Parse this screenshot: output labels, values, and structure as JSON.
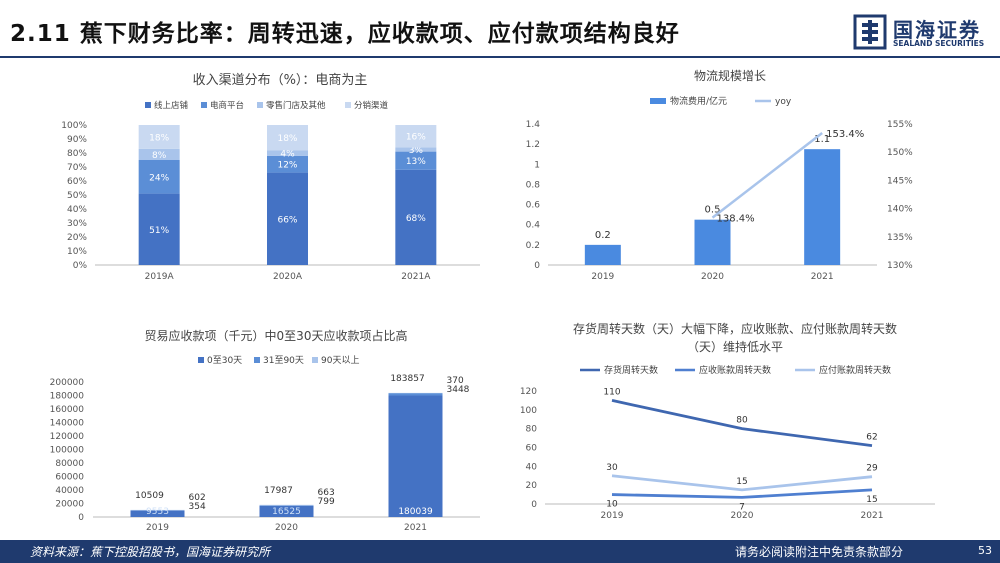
{
  "page": {
    "title": "2.11 蕉下财务比率：周转迅速，应收款项、应付款项结构良好",
    "logo_text": "国海证券",
    "logo_sub": "SEALAND SECURITIES",
    "source": "资料来源：蕉下控股招股书，国海证券研究所",
    "disclaimer": "请务必阅读附注中免责条款部分",
    "page_number": "53"
  },
  "colors": {
    "dark_blue": "#4472c4",
    "mid_blue": "#5b8ed6",
    "light_blue": "#a9c4eb",
    "pale_blue": "#c9d9f1",
    "bar_blue": "#4a8ae0",
    "line_light": "#a9c4eb",
    "line_dark": "#3f67b0",
    "header_navy": "#1f3a6e"
  },
  "chart_data": [
    {
      "id": "channel",
      "type": "bar",
      "stacked": true,
      "percent": true,
      "title": "收入渠道分布（%）：电商为主",
      "categories": [
        "2019A",
        "2020A",
        "2021A"
      ],
      "series": [
        {
          "name": "线上店铺",
          "values": [
            51,
            66,
            68
          ],
          "labels": [
            "51%",
            "66%",
            "68%"
          ]
        },
        {
          "name": "电商平台",
          "values": [
            24,
            12,
            13
          ],
          "labels": [
            "24%",
            "12%",
            "13%"
          ]
        },
        {
          "name": "零售门店及其他",
          "values": [
            8,
            4,
            3
          ],
          "labels": [
            "8%",
            "4%",
            "3%"
          ]
        },
        {
          "name": "分销渠道",
          "values": [
            18,
            18,
            16
          ],
          "labels": [
            "18%",
            "18%",
            "16%"
          ]
        }
      ],
      "yticks": [
        "0%",
        "10%",
        "20%",
        "30%",
        "40%",
        "50%",
        "60%",
        "70%",
        "80%",
        "90%",
        "100%"
      ],
      "ylim": [
        0,
        100
      ],
      "legend": "top"
    },
    {
      "id": "logistics",
      "type": "bar",
      "title": "物流规模增长",
      "categories": [
        "2019",
        "2020",
        "2021"
      ],
      "series": [
        {
          "name": "物流费用/亿元",
          "type": "bar",
          "values": [
            0.2,
            0.45,
            1.15
          ],
          "labels": [
            "0.2",
            "0.5",
            "1.1"
          ]
        },
        {
          "name": "yoy",
          "type": "line",
          "axis": "right",
          "values": [
            null,
            138.4,
            153.4
          ],
          "labels": [
            "",
            "138.4%",
            "153.4%"
          ]
        }
      ],
      "yticks": [
        "0",
        "0.2",
        "0.4",
        "0.6",
        "0.8",
        "1",
        "1.2",
        "1.4"
      ],
      "ylim": [
        0,
        1.4
      ],
      "y2ticks": [
        "130%",
        "135%",
        "140%",
        "145%",
        "150%",
        "155%"
      ],
      "y2lim": [
        130,
        155
      ],
      "legend": "top"
    },
    {
      "id": "receivables",
      "type": "bar",
      "stacked": true,
      "title": "贸易应收款项（千元）中0至30天应收款项占比高",
      "categories": [
        "2019",
        "2020",
        "2021"
      ],
      "series": [
        {
          "name": "0至30天",
          "values": [
            9553,
            16525,
            180039
          ],
          "labels": [
            "9553",
            "16525",
            "180039"
          ]
        },
        {
          "name": "31至90天",
          "values": [
            354,
            799,
            3448
          ],
          "labels": [
            "354",
            "799",
            "3448"
          ]
        },
        {
          "name": "90天以上",
          "values": [
            602,
            663,
            370
          ],
          "labels": [
            "602",
            "663",
            "370"
          ]
        }
      ],
      "totals": [
        "10509",
        "17987",
        "183857"
      ],
      "yticks": [
        "0",
        "20000",
        "40000",
        "60000",
        "80000",
        "100000",
        "120000",
        "140000",
        "160000",
        "180000",
        "200000"
      ],
      "ylim": [
        0,
        200000
      ],
      "legend": "top"
    },
    {
      "id": "turnover",
      "type": "line",
      "title": "存货周转天数（天）大幅下降，应收账款、应付账款周转天数（天）维持低水平",
      "title_lines": [
        "存货周转天数（天）大幅下降，应收账款、应付账款周转天数",
        "（天）维持低水平"
      ],
      "categories": [
        "2019",
        "2020",
        "2021"
      ],
      "series": [
        {
          "name": "存货周转天数",
          "values": [
            110,
            80,
            62
          ],
          "labels": [
            "110",
            "80",
            "62"
          ]
        },
        {
          "name": "应收账款周转天数",
          "values": [
            10,
            7,
            15
          ],
          "labels": [
            "10",
            "7",
            "15"
          ]
        },
        {
          "name": "应付账款周转天数",
          "values": [
            30,
            15,
            29
          ],
          "labels": [
            "30",
            "15",
            "29"
          ]
        }
      ],
      "yticks": [
        "0",
        "20",
        "40",
        "60",
        "80",
        "100",
        "120"
      ],
      "ylim": [
        0,
        120
      ],
      "legend": "top"
    }
  ]
}
